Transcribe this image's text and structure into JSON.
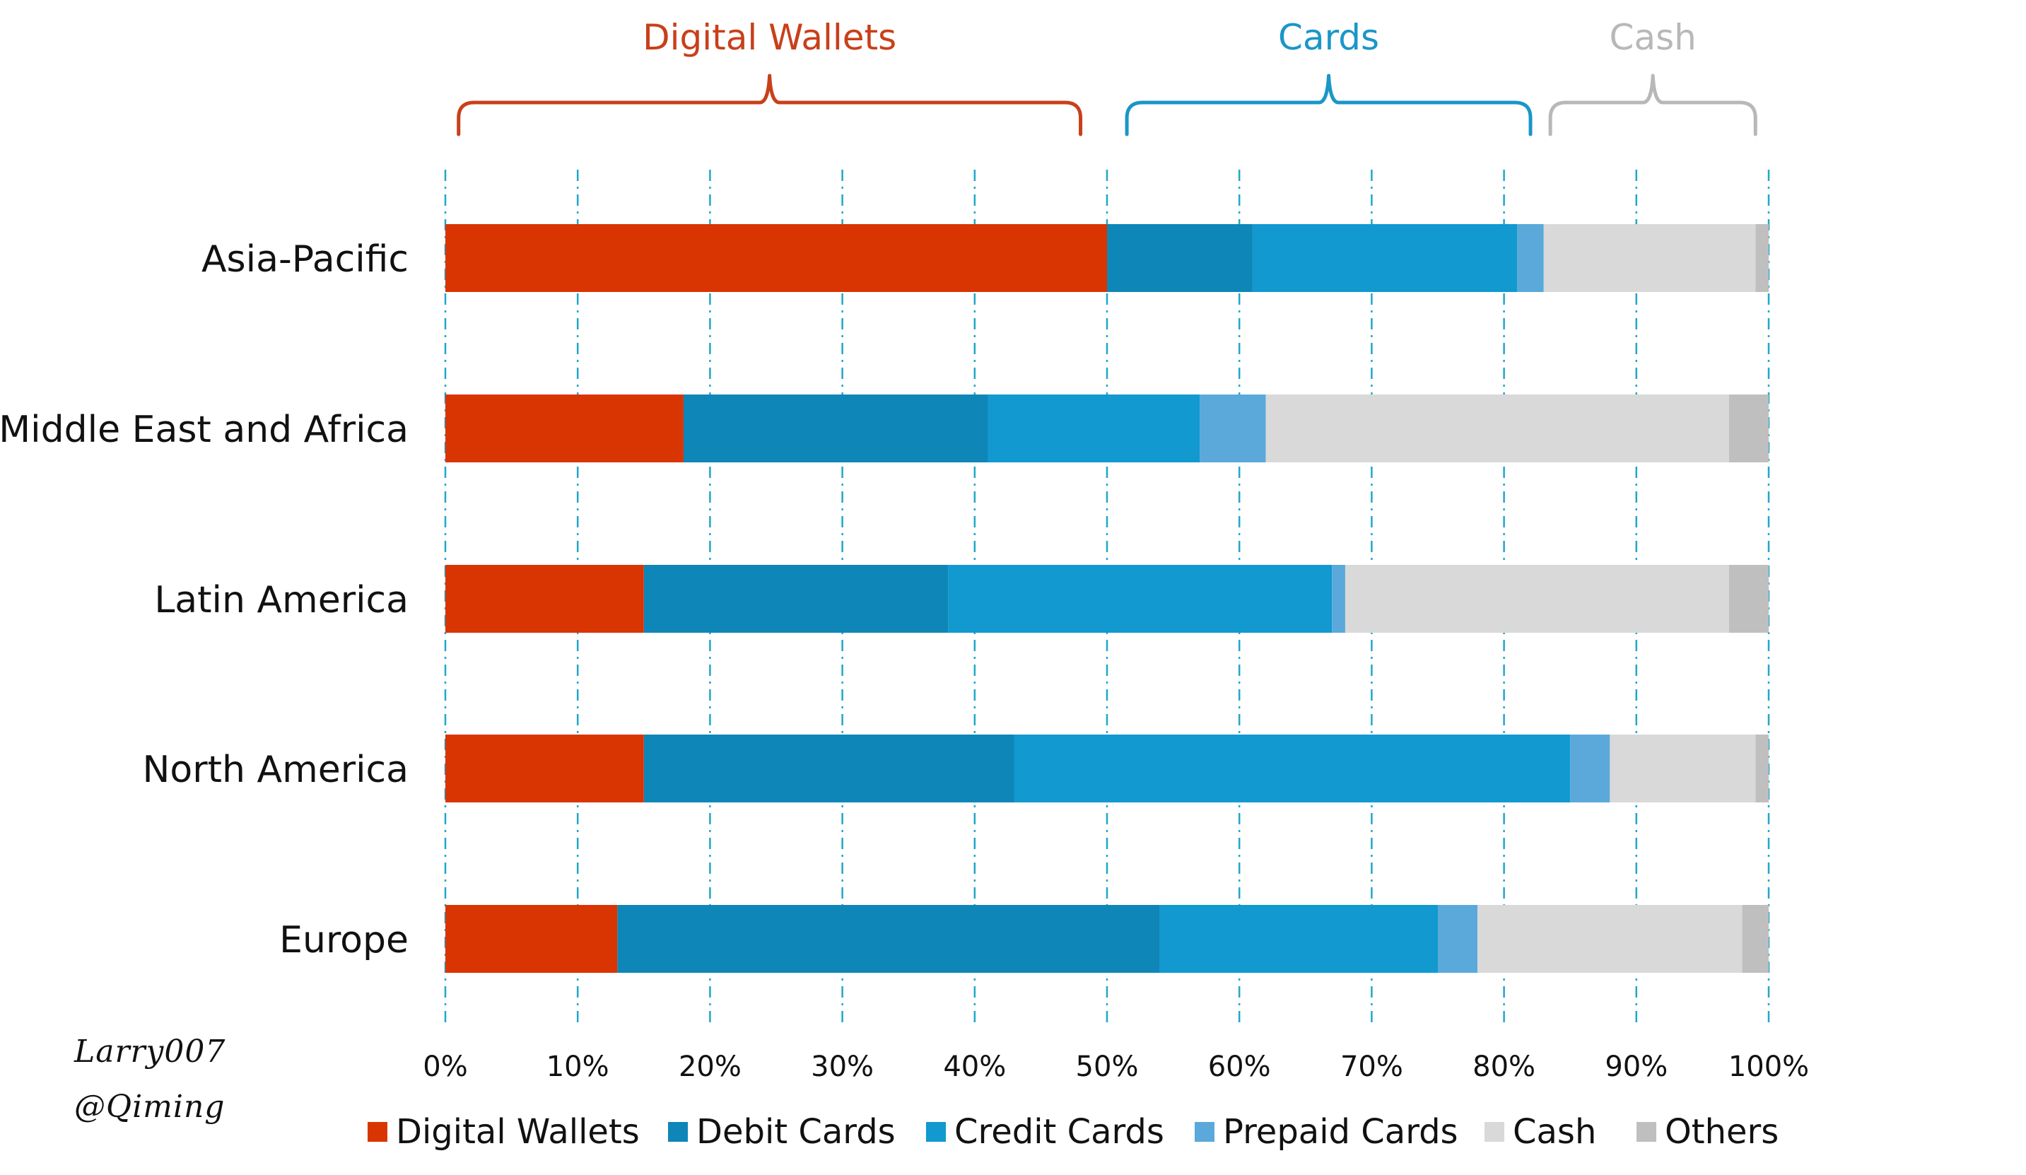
{
  "chart_data": {
    "type": "bar",
    "orientation": "horizontal",
    "stacked": true,
    "categories": [
      "Asia-Pacific",
      "Middle East and Africa",
      "Latin America",
      "North America",
      "Europe"
    ],
    "series": [
      {
        "name": "Digital Wallets",
        "color": "#d93503",
        "values": [
          50,
          18,
          15,
          15,
          13
        ]
      },
      {
        "name": "Debit Cards",
        "color": "#0e86b8",
        "values": [
          11,
          23,
          23,
          28,
          41
        ]
      },
      {
        "name": "Credit Cards",
        "color": "#1199d0",
        "values": [
          20,
          16,
          29,
          42,
          21
        ]
      },
      {
        "name": "Prepaid Cards",
        "color": "#5aa9da",
        "values": [
          2,
          5,
          1,
          3,
          3
        ]
      },
      {
        "name": "Cash",
        "color": "#d9d9d9",
        "values": [
          16,
          35,
          29,
          11,
          20
        ]
      },
      {
        "name": "Others",
        "color": "#bfbfbf",
        "values": [
          1,
          3,
          3,
          1,
          2
        ]
      }
    ],
    "xlim": [
      0,
      100
    ],
    "x_ticks": [
      "0%",
      "10%",
      "20%",
      "30%",
      "40%",
      "50%",
      "60%",
      "70%",
      "80%",
      "90%",
      "100%"
    ],
    "grid": "vertical dash-dot",
    "legend": "bottom",
    "group_brackets": [
      {
        "label": "Digital Wallets",
        "color": "#c8401a",
        "from": 1,
        "to": 48
      },
      {
        "label": "Cards",
        "color": "#1a96c8",
        "from": 51.5,
        "to": 82
      },
      {
        "label": "Cash",
        "color": "#b8b8b8",
        "from": 83.5,
        "to": 99
      }
    ]
  },
  "signature": {
    "line1": "Larry007",
    "line2": "@Qiming"
  }
}
